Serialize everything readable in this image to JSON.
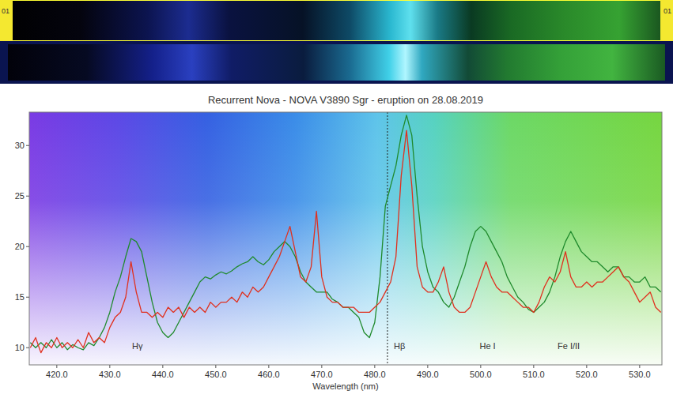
{
  "chart_data": {
    "type": "line",
    "title": "Recurrent Nova - NOVA V3890 Sgr - eruption on 28.08.2019",
    "strip_label_left": "01",
    "strip_label_right": "01",
    "x_label": "Wavelength (nm)",
    "x": [
      415,
      416,
      417,
      418,
      419,
      420,
      421,
      422,
      423,
      424,
      425,
      426,
      427,
      428,
      429,
      430,
      431,
      432,
      433,
      434,
      435,
      436,
      437,
      438,
      439,
      440,
      441,
      442,
      443,
      444,
      445,
      446,
      447,
      448,
      449,
      450,
      451,
      452,
      453,
      454,
      455,
      456,
      457,
      458,
      459,
      460,
      461,
      462,
      463,
      464,
      465,
      466,
      467,
      468,
      469,
      470,
      471,
      472,
      473,
      474,
      475,
      476,
      477,
      478,
      479,
      480,
      481,
      482,
      483,
      484,
      485,
      486,
      487,
      488,
      489,
      490,
      491,
      492,
      493,
      494,
      495,
      496,
      497,
      498,
      499,
      500,
      501,
      502,
      503,
      504,
      505,
      506,
      507,
      508,
      509,
      510,
      511,
      512,
      513,
      514,
      515,
      516,
      517,
      518,
      519,
      520,
      521,
      522,
      523,
      524,
      525,
      526,
      527,
      528,
      529,
      530,
      531,
      532,
      533,
      534
    ],
    "series": [
      {
        "color": "#1f8a2c",
        "values": [
          10.5,
          10,
          10.5,
          10,
          10.8,
          10,
          10.5,
          9.8,
          10.3,
          10,
          9.8,
          10.5,
          10.2,
          11,
          12,
          13.5,
          15.5,
          17,
          19,
          20.8,
          20.5,
          19.5,
          17,
          14.5,
          12.5,
          11.5,
          11,
          11.5,
          12.5,
          13.5,
          14.5,
          15.5,
          16.5,
          17,
          16.8,
          17.2,
          17.5,
          17.3,
          17.6,
          18,
          18.3,
          18.5,
          19,
          18.5,
          18.2,
          18.7,
          19.5,
          20,
          20.5,
          20,
          19,
          17.5,
          16.5,
          16,
          15.5,
          15.5,
          15.5,
          14.8,
          14.5,
          14,
          14,
          13.5,
          13,
          11.5,
          11,
          12.5,
          17,
          24,
          26,
          28,
          31,
          33,
          31,
          25,
          20,
          17.5,
          16,
          15.5,
          14.5,
          14,
          15,
          16.5,
          18,
          20,
          21.5,
          22,
          21.5,
          20.5,
          19.5,
          18.5,
          17,
          16,
          15,
          14.5,
          13.8,
          13.5,
          14,
          14.5,
          15.5,
          17,
          19,
          20.5,
          21.5,
          20.5,
          19.5,
          19,
          18.5,
          18.5,
          18,
          17.5,
          18,
          18,
          17,
          17,
          16.5,
          16.5,
          17,
          16,
          16,
          15.5
        ]
      },
      {
        "color": "#e0301e",
        "values": [
          10,
          11,
          9.5,
          10.5,
          10,
          11,
          10,
          10.5,
          10,
          10.8,
          10,
          11.5,
          10.5,
          11,
          10.5,
          12,
          13,
          13.5,
          15,
          18.5,
          15.5,
          13.5,
          13.5,
          13,
          13.5,
          13,
          14,
          13.5,
          14,
          13,
          14,
          13.5,
          14,
          13.5,
          14.5,
          14,
          14.5,
          14.5,
          15,
          14.5,
          15.5,
          15,
          16,
          15.5,
          16,
          17,
          18,
          19,
          20.5,
          22,
          19.5,
          17,
          16.5,
          18,
          23.5,
          17,
          15,
          14.5,
          14.5,
          14,
          14,
          14,
          13.5,
          13.5,
          13.5,
          14,
          14.5,
          15.5,
          16.5,
          19,
          27,
          31.5,
          26,
          18,
          16,
          15.5,
          15.5,
          16.5,
          18,
          15.5,
          14,
          13.5,
          13.5,
          14,
          15.5,
          17,
          18.5,
          17,
          16,
          15.5,
          15.5,
          15,
          14.5,
          14,
          14,
          13.5,
          14.5,
          16,
          17,
          16.5,
          17.5,
          19.5,
          17,
          16,
          16,
          16.5,
          16,
          16.5,
          16.5,
          17,
          17.5,
          18,
          17,
          16.5,
          15.5,
          14.5,
          15,
          15.5,
          14,
          13.5
        ]
      }
    ],
    "xlim": [
      414.8,
      534.2
    ],
    "ylim": [
      8.3,
      33.3
    ],
    "xticks": [
      {
        "value": 420,
        "label": "420.0"
      },
      {
        "value": 430,
        "label": "430.0"
      },
      {
        "value": 440,
        "label": "440.0"
      },
      {
        "value": 450,
        "label": "450.0"
      },
      {
        "value": 460,
        "label": "460.0"
      },
      {
        "value": 470,
        "label": "470.0"
      },
      {
        "value": 480,
        "label": "480.0"
      },
      {
        "value": 490,
        "label": "490.0"
      },
      {
        "value": 500,
        "label": "500.0"
      },
      {
        "value": 510,
        "label": "510.0"
      },
      {
        "value": 520,
        "label": "520.0"
      },
      {
        "value": 530,
        "label": "530.0"
      }
    ],
    "yticks": [
      10,
      15,
      20,
      25,
      30
    ],
    "grid": false,
    "reference_line_x": 482.4,
    "annotations": [
      {
        "text": "Hγ",
        "x": 434.2,
        "y": 9.9
      },
      {
        "text": "Hβ",
        "x": 483.6,
        "y": 9.9
      },
      {
        "text": "He I",
        "x": 499.8,
        "y": 9.9
      },
      {
        "text": "Fe I/II",
        "x": 514.5,
        "y": 9.9
      }
    ]
  }
}
